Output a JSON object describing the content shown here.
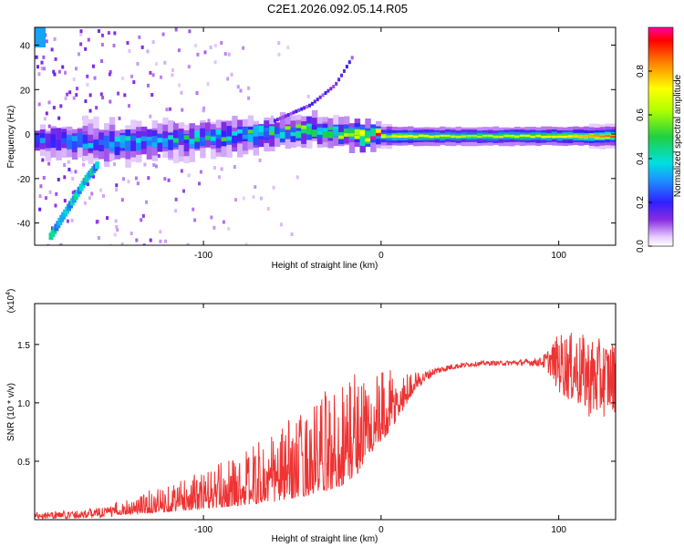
{
  "title": "C2E1.2026.092.05.14.R05",
  "chart_data": [
    {
      "type": "heatmap",
      "xlabel": "Height of straight line (km)",
      "ylabel": "Frequency (Hz)",
      "xlim": [
        -195,
        132
      ],
      "ylim": [
        -50,
        48
      ],
      "xticks": [
        -100,
        0,
        100
      ],
      "xtick_labels": [
        "-100",
        "0",
        "100"
      ],
      "yticks": [
        -40,
        -20,
        0,
        20,
        40
      ],
      "ytick_labels": [
        "-40",
        "-20",
        "0",
        "20",
        "40"
      ],
      "colorbar": {
        "label": "Normalized spectral amplitude",
        "range": [
          0,
          1
        ],
        "ticks": [
          0.0,
          0.2,
          0.4,
          0.6,
          0.8
        ],
        "tick_labels": [
          "0.0",
          "0.2",
          "0.4",
          "0.6",
          "0.8"
        ]
      },
      "features": {
        "main_band": {
          "x": [
            -195,
            -150,
            -100,
            -60,
            -40,
            -20,
            -10,
            0,
            50,
            100,
            132
          ],
          "center_freq": [
            -3,
            -4,
            -2,
            1,
            2,
            0,
            -1,
            -1,
            -1,
            -1,
            -1
          ],
          "peak_amplitude": [
            0.25,
            0.35,
            0.4,
            0.45,
            0.5,
            0.55,
            0.9,
            0.75,
            0.6,
            0.7,
            0.9
          ]
        },
        "ascending_streak": {
          "x": [
            -186,
            -180,
            -172,
            -166,
            -160
          ],
          "freq": [
            -46,
            -38,
            -28,
            -20,
            -14
          ],
          "amplitude": 0.35
        },
        "upper_streak": {
          "x": [
            -60,
            -40,
            -26,
            -22,
            -16
          ],
          "freq": [
            6,
            13,
            22,
            27,
            35
          ],
          "amplitude": 0.15
        }
      }
    },
    {
      "type": "line",
      "xlabel": "Height of straight line (km)",
      "ylabel": "SNR (10 * v/v)",
      "y_multiplier": "(x10",
      "y_multiplier_exp": "4",
      "y_multiplier_close": ")",
      "xlim": [
        -195,
        132
      ],
      "ylim": [
        0,
        18500
      ],
      "xticks": [
        -100,
        0,
        100
      ],
      "xtick_labels": [
        "-100",
        "0",
        "100"
      ],
      "yticks": [
        5000,
        10000,
        15000
      ],
      "ytick_labels": [
        "0.5",
        "1.0",
        "1.5"
      ],
      "color": "#ee3333",
      "envelope": {
        "x": [
          -195,
          -170,
          -150,
          -130,
          -100,
          -80,
          -60,
          -40,
          -25,
          -18,
          -13,
          -10,
          -5,
          0,
          5,
          10,
          15,
          20,
          30,
          40,
          50,
          60,
          70,
          80,
          90,
          95,
          100,
          110,
          120,
          132
        ],
        "baseline": [
          350,
          450,
          700,
          1100,
          1800,
          2400,
          3200,
          4200,
          5200,
          6000,
          6600,
          7000,
          7600,
          8200,
          9000,
          9800,
          10800,
          11800,
          12700,
          13100,
          13300,
          13400,
          13400,
          13450,
          13500,
          13600,
          13400,
          12800,
          12000,
          12200
        ],
        "noise": [
          300,
          350,
          500,
          900,
          1500,
          2000,
          2800,
          3500,
          4200,
          4500,
          4300,
          3600,
          3000,
          2800,
          2400,
          1800,
          1200,
          700,
          300,
          250,
          200,
          200,
          200,
          250,
          400,
          1200,
          2600,
          3200,
          3600,
          3000
        ]
      }
    }
  ]
}
